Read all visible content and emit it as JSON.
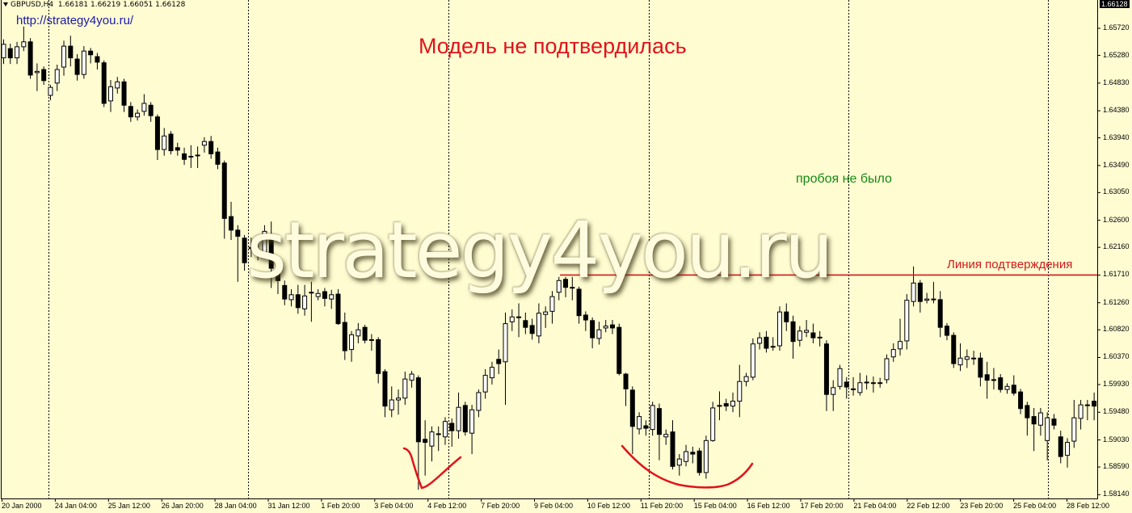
{
  "header": {
    "symbol": "GBPUSD,H4",
    "ohlc": "1.66181 1.66219 1.66051 1.66128"
  },
  "url_text": "http://strategy4you.ru/",
  "annotations": {
    "title": "Модель не подтвердилась",
    "no_breakout": "пробоя не было",
    "watermark": "strategy4you.ru"
  },
  "colors": {
    "background": "#fffcd2",
    "bull_body": "#ffffff",
    "bear_body": "#000000",
    "confirmation_line": "#d21a1a",
    "hand_drawn": "#e0141b",
    "title": "#e0141b",
    "no_breakout_text": "#138a13"
  },
  "chart_data": {
    "type": "candlestick",
    "symbol": "GBPUSD",
    "timeframe": "H4",
    "current_price": "1.66128",
    "ylim": [
      1.5814,
      1.6618
    ],
    "grid": "vertical dotted",
    "y_ticks": [
      "1.65720",
      "1.65280",
      "1.64830",
      "1.64380",
      "1.63940",
      "1.63490",
      "1.63050",
      "1.62600",
      "1.62160",
      "1.61710",
      "1.61260",
      "1.60820",
      "1.60370",
      "1.59930",
      "1.59480",
      "1.59030",
      "1.58590",
      "1.58140"
    ],
    "x_ticks": [
      "20 Jan 2000",
      "24 Jan 04:00",
      "25 Jan 12:00",
      "26 Jan 20:00",
      "28 Jan 04:00",
      "31 Jan 12:00",
      "1 Feb 20:00",
      "3 Feb 04:00",
      "4 Feb 12:00",
      "7 Feb 20:00",
      "9 Feb 04:00",
      "10 Feb 12:00",
      "11 Feb 20:00",
      "15 Feb 04:00",
      "16 Feb 12:00",
      "17 Feb 20:00",
      "21 Feb 04:00",
      "22 Feb 12:00",
      "23 Feb 20:00",
      "25 Feb 04:00",
      "28 Feb 12:00"
    ],
    "confirmation_line": {
      "label": "Линия подтверждения",
      "price": 1.6171
    },
    "candles_ohlc": [
      [
        1.6524,
        1.6554,
        1.6514,
        1.6546
      ],
      [
        1.6539,
        1.6547,
        1.6514,
        1.6524
      ],
      [
        1.6524,
        1.655,
        1.6514,
        1.6542
      ],
      [
        1.6542,
        1.6575,
        1.6535,
        1.655
      ],
      [
        1.655,
        1.6556,
        1.649,
        1.6496
      ],
      [
        1.65,
        1.6515,
        1.647,
        1.6502
      ],
      [
        1.6505,
        1.651,
        1.648,
        1.6487
      ],
      [
        1.6463,
        1.648,
        1.6455,
        1.6476
      ],
      [
        1.6483,
        1.6513,
        1.647,
        1.6505
      ],
      [
        1.6509,
        1.6552,
        1.6495,
        1.6543
      ],
      [
        1.6543,
        1.656,
        1.651,
        1.6524
      ],
      [
        1.6522,
        1.653,
        1.6487,
        1.6497
      ],
      [
        1.6497,
        1.6543,
        1.649,
        1.6535
      ],
      [
        1.6535,
        1.654,
        1.6515,
        1.6529
      ],
      [
        1.6526,
        1.6532,
        1.6505,
        1.6517
      ],
      [
        1.6516,
        1.652,
        1.6444,
        1.645
      ],
      [
        1.6454,
        1.6488,
        1.6436,
        1.6477
      ],
      [
        1.6475,
        1.6493,
        1.6466,
        1.6485
      ],
      [
        1.6485,
        1.649,
        1.6436,
        1.6447
      ],
      [
        1.6445,
        1.6452,
        1.642,
        1.6428
      ],
      [
        1.6428,
        1.644,
        1.6422,
        1.6434
      ],
      [
        1.6437,
        1.6465,
        1.643,
        1.645
      ],
      [
        1.6447,
        1.6452,
        1.642,
        1.643
      ],
      [
        1.6428,
        1.6432,
        1.6358,
        1.6375
      ],
      [
        1.6375,
        1.641,
        1.6365,
        1.6397
      ],
      [
        1.64,
        1.6405,
        1.6367,
        1.6373
      ],
      [
        1.6378,
        1.6386,
        1.6365,
        1.6374
      ],
      [
        1.6368,
        1.6378,
        1.635,
        1.6359
      ],
      [
        1.6364,
        1.6382,
        1.6345,
        1.6364
      ],
      [
        1.6366,
        1.638,
        1.6345,
        1.6366
      ],
      [
        1.6382,
        1.6395,
        1.637,
        1.6388
      ],
      [
        1.6388,
        1.6397,
        1.636,
        1.6368
      ],
      [
        1.6371,
        1.6378,
        1.6343,
        1.6351
      ],
      [
        1.6353,
        1.6357,
        1.623,
        1.6263
      ],
      [
        1.6266,
        1.629,
        1.6228,
        1.6244
      ],
      [
        1.6244,
        1.6252,
        1.616,
        1.6234
      ],
      [
        1.6231,
        1.6236,
        1.6178,
        1.6191
      ],
      [
        1.6216,
        1.6232,
        1.62,
        1.6214
      ],
      [
        1.621,
        1.6225,
        1.6195,
        1.621
      ],
      [
        1.6207,
        1.6252,
        1.6198,
        1.6242
      ],
      [
        1.6237,
        1.6258,
        1.615,
        1.6182
      ],
      [
        1.6178,
        1.62,
        1.614,
        1.6162
      ],
      [
        1.6154,
        1.6162,
        1.6122,
        1.6132
      ],
      [
        1.6131,
        1.6148,
        1.612,
        1.6139
      ],
      [
        1.6139,
        1.6155,
        1.6108,
        1.6118
      ],
      [
        1.6116,
        1.6155,
        1.6105,
        1.6137
      ],
      [
        1.6143,
        1.616,
        1.6095,
        1.6143
      ],
      [
        1.6136,
        1.6148,
        1.613,
        1.6141
      ],
      [
        1.6144,
        1.615,
        1.612,
        1.6133
      ],
      [
        1.6132,
        1.6147,
        1.6116,
        1.6139
      ],
      [
        1.614,
        1.6148,
        1.609,
        1.6092
      ],
      [
        1.6094,
        1.611,
        1.6033,
        1.6048
      ],
      [
        1.605,
        1.608,
        1.603,
        1.6074
      ],
      [
        1.6072,
        1.6093,
        1.606,
        1.6082
      ],
      [
        1.6086,
        1.609,
        1.606,
        1.6065
      ],
      [
        1.6066,
        1.6075,
        1.6048,
        1.6066
      ],
      [
        1.6066,
        1.607,
        1.5995,
        1.6011
      ],
      [
        1.6014,
        1.6018,
        1.594,
        1.5958
      ],
      [
        1.5952,
        1.599,
        1.594,
        1.5968
      ],
      [
        1.5968,
        1.5985,
        1.5944,
        1.5971
      ],
      [
        1.5971,
        1.6014,
        1.596,
        1.6002
      ],
      [
        1.6,
        1.6015,
        1.5988,
        1.601
      ],
      [
        1.6004,
        1.6008,
        1.5822,
        1.59
      ],
      [
        1.5904,
        1.5935,
        1.5845,
        1.5899
      ],
      [
        1.5893,
        1.5925,
        1.5868,
        1.5916
      ],
      [
        1.5913,
        1.5925,
        1.5885,
        1.5913
      ],
      [
        1.5908,
        1.594,
        1.5895,
        1.5933
      ],
      [
        1.593,
        1.5938,
        1.5892,
        1.5918
      ],
      [
        1.5918,
        1.598,
        1.5905,
        1.5956
      ],
      [
        1.5959,
        1.5965,
        1.591,
        1.5916
      ],
      [
        1.5914,
        1.596,
        1.588,
        1.5952
      ],
      [
        1.5951,
        1.5985,
        1.594,
        1.598
      ],
      [
        1.5981,
        1.6018,
        1.597,
        1.6008
      ],
      [
        1.6004,
        1.603,
        1.5993,
        1.6021
      ],
      [
        1.6034,
        1.605,
        1.601,
        1.6027
      ],
      [
        1.603,
        1.611,
        1.596,
        1.6092
      ],
      [
        1.6095,
        1.6115,
        1.608,
        1.6103
      ],
      [
        1.6103,
        1.6125,
        1.607,
        1.6103
      ],
      [
        1.6097,
        1.611,
        1.6075,
        1.6086
      ],
      [
        1.6089,
        1.61,
        1.6066,
        1.6076
      ],
      [
        1.6072,
        1.6125,
        1.606,
        1.6109
      ],
      [
        1.6107,
        1.612,
        1.6085,
        1.6111
      ],
      [
        1.6112,
        1.6145,
        1.6092,
        1.6136
      ],
      [
        1.6143,
        1.6168,
        1.613,
        1.6162
      ],
      [
        1.6164,
        1.6168,
        1.6135,
        1.6151
      ],
      [
        1.6151,
        1.6168,
        1.613,
        1.6151
      ],
      [
        1.6148,
        1.6152,
        1.6092,
        1.6105
      ],
      [
        1.6106,
        1.6112,
        1.608,
        1.6098
      ],
      [
        1.6097,
        1.6102,
        1.6052,
        1.6069
      ],
      [
        1.6068,
        1.6095,
        1.6058,
        1.6082
      ],
      [
        1.6085,
        1.6098,
        1.6078,
        1.6088
      ],
      [
        1.609,
        1.6098,
        1.6075,
        1.6085
      ],
      [
        1.6086,
        1.6092,
        1.6008,
        1.6011
      ],
      [
        1.601,
        1.6012,
        1.5958,
        1.5986
      ],
      [
        1.5984,
        1.599,
        1.588,
        1.5925
      ],
      [
        1.5921,
        1.5948,
        1.5912,
        1.5941
      ],
      [
        1.5926,
        1.5935,
        1.591,
        1.5922
      ],
      [
        1.592,
        1.5965,
        1.591,
        1.5959
      ],
      [
        1.5954,
        1.5962,
        1.587,
        1.5912
      ],
      [
        1.5908,
        1.592,
        1.5895,
        1.5912
      ],
      [
        1.5916,
        1.5935,
        1.5855,
        1.586
      ],
      [
        1.5862,
        1.588,
        1.5845,
        1.5872
      ],
      [
        1.5868,
        1.5895,
        1.586,
        1.5884
      ],
      [
        1.5883,
        1.5892,
        1.5865,
        1.588
      ],
      [
        1.5885,
        1.589,
        1.5845,
        1.585
      ],
      [
        1.585,
        1.591,
        1.584,
        1.5902
      ],
      [
        1.5902,
        1.5965,
        1.59,
        1.5955
      ],
      [
        1.5959,
        1.5982,
        1.5935,
        1.5959
      ],
      [
        1.5962,
        1.597,
        1.595,
        1.5958
      ],
      [
        1.5958,
        1.598,
        1.5948,
        1.5966
      ],
      [
        1.5966,
        1.6025,
        1.594,
        1.5998
      ],
      [
        1.5998,
        1.6012,
        1.599,
        1.6006
      ],
      [
        1.6005,
        1.6068,
        1.6,
        1.6059
      ],
      [
        1.606,
        1.6078,
        1.605,
        1.6069
      ],
      [
        1.607,
        1.608,
        1.6045,
        1.6052
      ],
      [
        1.6055,
        1.607,
        1.6048,
        1.6055
      ],
      [
        1.6056,
        1.612,
        1.6048,
        1.6111
      ],
      [
        1.6111,
        1.6125,
        1.608,
        1.6095
      ],
      [
        1.6095,
        1.6105,
        1.6035,
        1.6063
      ],
      [
        1.6065,
        1.6088,
        1.6055,
        1.608
      ],
      [
        1.6078,
        1.6098,
        1.607,
        1.6081
      ],
      [
        1.6077,
        1.6092,
        1.606,
        1.6069
      ],
      [
        1.607,
        1.608,
        1.6055,
        1.6069
      ],
      [
        1.6059,
        1.6065,
        1.595,
        1.5977
      ],
      [
        1.5977,
        1.6,
        1.595,
        1.5988
      ],
      [
        1.599,
        1.6025,
        1.5985,
        1.6019
      ],
      [
        1.5997,
        1.6005,
        1.597,
        1.5989
      ],
      [
        1.5986,
        1.6005,
        1.5975,
        1.5986
      ],
      [
        1.598,
        1.6012,
        1.5975,
        1.5996
      ],
      [
        1.5997,
        1.6008,
        1.5985,
        1.5997
      ],
      [
        1.5996,
        1.6006,
        1.598,
        1.5996
      ],
      [
        1.5996,
        1.6004,
        1.5988,
        1.5996
      ],
      [
        1.6001,
        1.6042,
        1.5995,
        1.6035
      ],
      [
        1.6038,
        1.606,
        1.603,
        1.605
      ],
      [
        1.6051,
        1.61,
        1.604,
        1.6063
      ],
      [
        1.6064,
        1.614,
        1.605,
        1.613
      ],
      [
        1.6128,
        1.6185,
        1.612,
        1.6158
      ],
      [
        1.6158,
        1.6163,
        1.611,
        1.6128
      ],
      [
        1.613,
        1.6142,
        1.6125,
        1.6132
      ],
      [
        1.6132,
        1.616,
        1.6125,
        1.6132
      ],
      [
        1.6131,
        1.6145,
        1.607,
        1.6086
      ],
      [
        1.6088,
        1.6093,
        1.6065,
        1.6073
      ],
      [
        1.6073,
        1.6078,
        1.602,
        1.6027
      ],
      [
        1.6025,
        1.606,
        1.6015,
        1.6036
      ],
      [
        1.6034,
        1.605,
        1.602,
        1.6038
      ],
      [
        1.6036,
        1.6048,
        1.6025,
        1.6036
      ],
      [
        1.6036,
        1.6045,
        1.599,
        1.6005
      ],
      [
        1.6009,
        1.603,
        1.597,
        1.6
      ],
      [
        1.6001,
        1.602,
        1.5985,
        1.6001
      ],
      [
        1.6004,
        1.601,
        1.598,
        1.5985
      ],
      [
        1.5985,
        1.5995,
        1.5978,
        1.599
      ],
      [
        1.5992,
        1.6008,
        1.5975,
        1.5979
      ],
      [
        1.5981,
        1.5986,
        1.5945,
        1.5954
      ],
      [
        1.5959,
        1.5965,
        1.591,
        1.5939
      ],
      [
        1.5941,
        1.5955,
        1.5885,
        1.5929
      ],
      [
        1.5927,
        1.5955,
        1.591,
        1.5947
      ],
      [
        1.5902,
        1.5948,
        1.587,
        1.5939
      ],
      [
        1.5937,
        1.5945,
        1.592,
        1.5927
      ],
      [
        1.5908,
        1.5918,
        1.5865,
        1.5876
      ],
      [
        1.5878,
        1.5906,
        1.5858,
        1.5899
      ],
      [
        1.5901,
        1.5968,
        1.589,
        1.5939
      ],
      [
        1.5938,
        1.5968,
        1.592,
        1.596
      ],
      [
        1.596,
        1.5968,
        1.5935,
        1.596
      ],
      [
        1.5966,
        1.598,
        1.5935,
        1.5958
      ]
    ]
  }
}
